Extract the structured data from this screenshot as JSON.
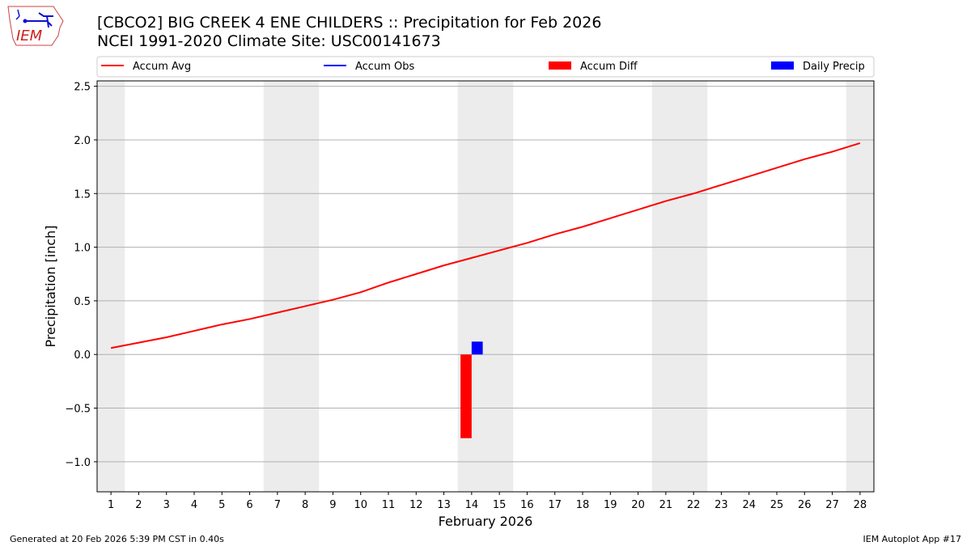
{
  "title_line1": "[CBCO2] BIG CREEK 4 ENE CHILDERS :: Precipitation for Feb 2026",
  "title_line2": "NCEI 1991-2020 Climate Site: USC00141673",
  "footer_left": "Generated at 20 Feb 2026 5:39 PM CST in 0.40s",
  "footer_right": "IEM Autoplot App #17",
  "logo_text": "IEM",
  "chart_data": {
    "type": "line",
    "xlabel": "February 2026",
    "ylabel": "Precipitation [inch]",
    "xlim": [
      0.5,
      28.5
    ],
    "ylim": [
      -1.28,
      2.55
    ],
    "grid": "y",
    "legend_placement": "top",
    "x_ticks": [
      1,
      2,
      3,
      4,
      5,
      6,
      7,
      8,
      9,
      10,
      11,
      12,
      13,
      14,
      15,
      16,
      17,
      18,
      19,
      20,
      21,
      22,
      23,
      24,
      25,
      26,
      27,
      28
    ],
    "y_ticks": [
      {
        "value": 2.5,
        "label": "2.5"
      },
      {
        "value": 2.0,
        "label": "2.0"
      },
      {
        "value": 1.5,
        "label": "1.5"
      },
      {
        "value": 1.0,
        "label": "1.0"
      },
      {
        "value": 0.5,
        "label": "0.5"
      },
      {
        "value": 0.0,
        "label": "0.0"
      },
      {
        "value": -0.5,
        "label": "−0.5"
      },
      {
        "value": -1.0,
        "label": "−1.0"
      }
    ],
    "weekend_days": [
      1,
      7,
      8,
      14,
      15,
      21,
      22,
      28
    ],
    "series": [
      {
        "name": "Accum Avg",
        "kind": "line",
        "color": "#ff0000",
        "x": [
          1,
          2,
          3,
          4,
          5,
          6,
          7,
          8,
          9,
          10,
          11,
          12,
          13,
          14,
          15,
          16,
          17,
          18,
          19,
          20,
          21,
          22,
          23,
          24,
          25,
          26,
          27,
          28
        ],
        "values": [
          0.06,
          0.11,
          0.16,
          0.22,
          0.28,
          0.33,
          0.39,
          0.45,
          0.51,
          0.58,
          0.67,
          0.75,
          0.83,
          0.9,
          0.97,
          1.04,
          1.12,
          1.19,
          1.27,
          1.35,
          1.43,
          1.5,
          1.58,
          1.66,
          1.74,
          1.82,
          1.89,
          1.97
        ]
      },
      {
        "name": "Accum Obs",
        "kind": "line",
        "color": "#0000ff",
        "x": [],
        "values": []
      },
      {
        "name": "Accum Diff",
        "kind": "bar",
        "color": "#ff0000",
        "x": [
          14
        ],
        "values": [
          -0.78
        ]
      },
      {
        "name": "Daily Precip",
        "kind": "bar",
        "color": "#0000ff",
        "x": [
          14
        ],
        "values": [
          0.12
        ]
      }
    ]
  }
}
